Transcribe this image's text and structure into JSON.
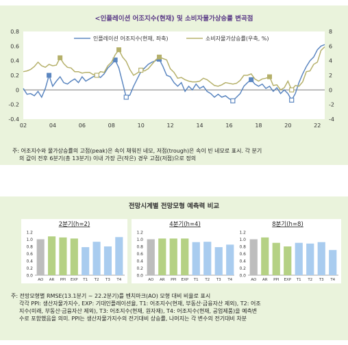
{
  "top": {
    "title": "<인플레이션 어조지수(현재) 및 소비자물가상승률 변곡점",
    "note_line1": "주: 어조지수와 물가상승률의 고점(peak)은 속이 채워진 네모, 저점(trough)은 속이 빈 네모로 표시. 각 분기",
    "note_line2": "의 값이 전후 6분기(총 13분기) 이내 가장 큰(작은) 경우 고점(저점)으로 정의"
  },
  "bottom": {
    "title": "전망시계별 전망모형 예측력 비교",
    "note_line1": "주: 전망모형별 RMSE(13.1분기 ~ 22.2분기)를 벤치마크(AO) 모형 대비 비율로 표시",
    "note_line2": "각각 PPI: 생산자물가지수, EXP: 기대인플레이션율, T1: 어조지수(현재, 부동산·금융자산 제외), T2: 어조",
    "note_line3": "지수(미래, 부동산·금융자산 제외), T3: 어조지수(현재, 원자재), T4: 어조지수(현재, 공업제품)을 예측변",
    "note_line4": "수로 포함했음을 의미. PPI는 생산자물가지수의 전기대비 상승률, 나머지는 각 변수의 전기대비 차분"
  },
  "chart_data": [
    {
      "type": "line",
      "title": "<인플레이션 어조지수(현재) 및 소비자물가상승률 변곡점",
      "x_ticks": [
        "02",
        "04",
        "06",
        "08",
        "10",
        "12",
        "14",
        "16",
        "18",
        "20",
        "22"
      ],
      "x_range": [
        2002.0,
        2022.5
      ],
      "y_left": {
        "range": [
          -0.4,
          0.8
        ],
        "ticks": [
          "-0.4",
          "-0.2",
          "0",
          "0.2",
          "0.4",
          "0.6",
          "0.8"
        ]
      },
      "y_right": {
        "range": [
          -4,
          8
        ],
        "ticks": [
          "-4",
          "-2",
          "0",
          "2",
          "4",
          "6",
          "8"
        ]
      },
      "grid": false,
      "legend_position": "top",
      "series": [
        {
          "name": "인플레이션 어조지수(현재, 좌축)",
          "axis": "left",
          "color": "#5b86c0",
          "points": [
            [
              2002.0,
              0.02
            ],
            [
              2002.25,
              -0.06
            ],
            [
              2002.5,
              -0.05
            ],
            [
              2002.75,
              -0.08
            ],
            [
              2003.0,
              -0.02
            ],
            [
              2003.25,
              -0.1
            ],
            [
              2003.5,
              0.02
            ],
            [
              2003.75,
              0.2
            ],
            [
              2004.0,
              0.05
            ],
            [
              2004.25,
              0.12
            ],
            [
              2004.5,
              0.18
            ],
            [
              2004.75,
              0.1
            ],
            [
              2005.0,
              0.08
            ],
            [
              2005.25,
              0.12
            ],
            [
              2005.5,
              0.15
            ],
            [
              2005.75,
              0.1
            ],
            [
              2006.0,
              0.18
            ],
            [
              2006.25,
              0.12
            ],
            [
              2006.5,
              0.15
            ],
            [
              2006.75,
              0.18
            ],
            [
              2007.0,
              0.2
            ],
            [
              2007.25,
              0.17
            ],
            [
              2007.5,
              0.22
            ],
            [
              2007.75,
              0.3
            ],
            [
              2008.0,
              0.35
            ],
            [
              2008.25,
              0.41
            ],
            [
              2008.5,
              0.3
            ],
            [
              2008.75,
              0.1
            ],
            [
              2009.0,
              -0.1
            ],
            [
              2009.25,
              -0.07
            ],
            [
              2009.5,
              0.05
            ],
            [
              2009.75,
              0.15
            ],
            [
              2010.0,
              0.25
            ],
            [
              2010.25,
              0.3
            ],
            [
              2010.5,
              0.35
            ],
            [
              2010.75,
              0.38
            ],
            [
              2011.0,
              0.4
            ],
            [
              2011.25,
              0.42
            ],
            [
              2011.5,
              0.32
            ],
            [
              2011.75,
              0.2
            ],
            [
              2012.0,
              0.18
            ],
            [
              2012.25,
              0.1
            ],
            [
              2012.5,
              0.05
            ],
            [
              2012.75,
              0.1
            ],
            [
              2013.0,
              -0.02
            ],
            [
              2013.25,
              0.05
            ],
            [
              2013.5,
              0.0
            ],
            [
              2013.75,
              0.08
            ],
            [
              2014.0,
              0.02
            ],
            [
              2014.25,
              0.05
            ],
            [
              2014.5,
              -0.02
            ],
            [
              2014.75,
              -0.05
            ],
            [
              2015.0,
              -0.1
            ],
            [
              2015.25,
              -0.06
            ],
            [
              2015.5,
              -0.1
            ],
            [
              2015.75,
              -0.08
            ],
            [
              2016.0,
              -0.12
            ],
            [
              2016.25,
              -0.15
            ],
            [
              2016.5,
              -0.1
            ],
            [
              2016.75,
              -0.05
            ],
            [
              2017.0,
              0.05
            ],
            [
              2017.25,
              0.1
            ],
            [
              2017.5,
              0.14
            ],
            [
              2017.75,
              0.08
            ],
            [
              2018.0,
              0.05
            ],
            [
              2018.25,
              0.08
            ],
            [
              2018.5,
              0.02
            ],
            [
              2018.75,
              0.05
            ],
            [
              2019.0,
              -0.02
            ],
            [
              2019.25,
              0.03
            ],
            [
              2019.5,
              -0.05
            ],
            [
              2019.75,
              0.0
            ],
            [
              2020.0,
              -0.05
            ],
            [
              2020.25,
              -0.14
            ],
            [
              2020.5,
              -0.05
            ],
            [
              2020.75,
              0.1
            ],
            [
              2021.0,
              0.22
            ],
            [
              2021.25,
              0.32
            ],
            [
              2021.5,
              0.4
            ],
            [
              2021.75,
              0.45
            ],
            [
              2022.0,
              0.55
            ],
            [
              2022.25,
              0.6
            ],
            [
              2022.5,
              0.62
            ]
          ],
          "peaks": [
            [
              2003.75,
              0.2
            ],
            [
              2008.25,
              0.41
            ],
            [
              2011.25,
              0.42
            ],
            [
              2017.5,
              0.14
            ]
          ],
          "troughs": [
            [
              2009.0,
              -0.1
            ],
            [
              2016.25,
              -0.15
            ],
            [
              2020.25,
              -0.14
            ]
          ]
        },
        {
          "name": "소비자물가상승률(우축, %)",
          "axis": "right",
          "color": "#b5b06a",
          "points": [
            [
              2002.0,
              2.5
            ],
            [
              2002.25,
              2.6
            ],
            [
              2002.5,
              2.8
            ],
            [
              2002.75,
              3.2
            ],
            [
              2003.0,
              3.8
            ],
            [
              2003.25,
              3.3
            ],
            [
              2003.5,
              3.1
            ],
            [
              2003.75,
              3.5
            ],
            [
              2004.0,
              3.3
            ],
            [
              2004.25,
              3.4
            ],
            [
              2004.5,
              4.4
            ],
            [
              2004.75,
              3.6
            ],
            [
              2005.0,
              3.1
            ],
            [
              2005.25,
              3.0
            ],
            [
              2005.5,
              2.5
            ],
            [
              2005.75,
              2.5
            ],
            [
              2006.0,
              2.3
            ],
            [
              2006.25,
              2.4
            ],
            [
              2006.5,
              2.4
            ],
            [
              2006.75,
              2.1
            ],
            [
              2007.0,
              2.0
            ],
            [
              2007.25,
              2.5
            ],
            [
              2007.5,
              2.4
            ],
            [
              2007.75,
              3.3
            ],
            [
              2008.0,
              3.8
            ],
            [
              2008.25,
              4.8
            ],
            [
              2008.5,
              5.5
            ],
            [
              2008.75,
              4.5
            ],
            [
              2009.0,
              3.9
            ],
            [
              2009.25,
              2.8
            ],
            [
              2009.5,
              2.0
            ],
            [
              2009.75,
              2.3
            ],
            [
              2010.0,
              2.7
            ],
            [
              2010.25,
              2.6
            ],
            [
              2010.5,
              2.9
            ],
            [
              2010.75,
              3.5
            ],
            [
              2011.0,
              4.1
            ],
            [
              2011.25,
              4.5
            ],
            [
              2011.5,
              4.3
            ],
            [
              2011.75,
              4.1
            ],
            [
              2012.0,
              2.9
            ],
            [
              2012.25,
              2.4
            ],
            [
              2012.5,
              1.6
            ],
            [
              2012.75,
              1.7
            ],
            [
              2013.0,
              1.4
            ],
            [
              2013.25,
              1.2
            ],
            [
              2013.5,
              1.1
            ],
            [
              2013.75,
              1.1
            ],
            [
              2014.0,
              1.2
            ],
            [
              2014.25,
              1.6
            ],
            [
              2014.5,
              1.4
            ],
            [
              2014.75,
              1.0
            ],
            [
              2015.0,
              0.6
            ],
            [
              2015.25,
              0.5
            ],
            [
              2015.5,
              0.7
            ],
            [
              2015.75,
              1.0
            ],
            [
              2016.0,
              0.9
            ],
            [
              2016.25,
              0.8
            ],
            [
              2016.5,
              0.9
            ],
            [
              2016.75,
              1.3
            ],
            [
              2017.0,
              2.0
            ],
            [
              2017.25,
              2.0
            ],
            [
              2017.5,
              2.2
            ],
            [
              2017.75,
              1.5
            ],
            [
              2018.0,
              1.2
            ],
            [
              2018.25,
              1.5
            ],
            [
              2018.5,
              1.6
            ],
            [
              2018.75,
              1.8
            ],
            [
              2019.0,
              0.6
            ],
            [
              2019.25,
              0.7
            ],
            [
              2019.5,
              0.0
            ],
            [
              2019.75,
              0.3
            ],
            [
              2020.0,
              1.2
            ],
            [
              2020.25,
              0.0
            ],
            [
              2020.5,
              0.6
            ],
            [
              2020.75,
              0.5
            ],
            [
              2021.0,
              1.1
            ],
            [
              2021.25,
              2.5
            ],
            [
              2021.5,
              2.6
            ],
            [
              2021.75,
              3.5
            ],
            [
              2022.0,
              3.8
            ],
            [
              2022.25,
              5.4
            ],
            [
              2022.5,
              5.9
            ]
          ],
          "peaks": [
            [
              2004.5,
              4.4
            ],
            [
              2008.5,
              5.5
            ],
            [
              2011.25,
              4.5
            ],
            [
              2018.75,
              1.8
            ]
          ],
          "troughs": [
            [
              2007.0,
              2.0
            ],
            [
              2010.0,
              2.7
            ],
            [
              2020.25,
              0.0
            ]
          ]
        }
      ]
    },
    {
      "type": "bar",
      "title": "2분기(h=2)",
      "categories": [
        "AO",
        "AR",
        "PPI",
        "EXP",
        "T1",
        "T2",
        "T3",
        "T4"
      ],
      "values": [
        1.0,
        1.08,
        1.05,
        1.02,
        0.78,
        0.93,
        0.8,
        1.06
      ],
      "ylim": [
        0,
        1.2
      ],
      "y_ticks": [
        "0.0",
        "0.2",
        "0.4",
        "0.6",
        "0.8",
        "1.0",
        "1.2"
      ]
    },
    {
      "type": "bar",
      "title": "4분기(h=4)",
      "categories": [
        "AO",
        "AR",
        "PPI",
        "EXP",
        "T1",
        "T2",
        "T3",
        "T4"
      ],
      "values": [
        1.0,
        1.02,
        1.02,
        1.02,
        0.92,
        0.93,
        0.78,
        0.85
      ],
      "ylim": [
        0,
        1.2
      ],
      "y_ticks": [
        "0.0",
        "0.2",
        "0.4",
        "0.6",
        "0.8",
        "1.0",
        "1.2"
      ]
    },
    {
      "type": "bar",
      "title": "8분기(h=8)",
      "categories": [
        "AO",
        "AR",
        "PPI",
        "EXP",
        "T1",
        "T2",
        "T3",
        "T4"
      ],
      "values": [
        1.0,
        1.05,
        0.9,
        0.8,
        0.9,
        0.88,
        0.92,
        0.7
      ],
      "ylim": [
        0,
        1.2
      ],
      "y_ticks": [
        "0.0",
        "0.2",
        "0.4",
        "0.6",
        "0.8",
        "1.0",
        "1.2"
      ]
    }
  ],
  "colors": {
    "panel_bg": "#eaf3dc",
    "top_title": "#5a3a86",
    "bar_benchmark": "#bdbdbd",
    "bar_other": "#a9ccef",
    "bar_top_bar_series": "#b5d184",
    "bar_subchart_bg": "#ffffff"
  }
}
